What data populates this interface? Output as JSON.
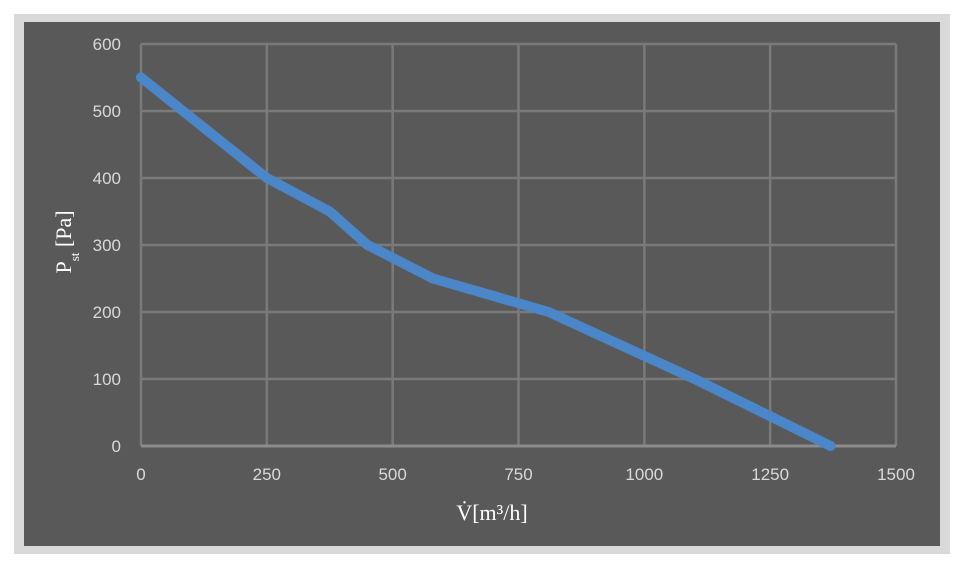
{
  "chart_data": {
    "type": "line",
    "title": "",
    "xlabel": "V̇[m³/h]",
    "ylabel_main": "P",
    "ylabel_sub": "st",
    "ylabel_unit": " [Pa]",
    "xlim": [
      0,
      1500
    ],
    "ylim": [
      0,
      600
    ],
    "x_ticks": [
      0,
      250,
      500,
      750,
      1000,
      1250,
      1500
    ],
    "y_ticks": [
      0,
      100,
      200,
      300,
      400,
      500,
      600
    ],
    "grid": true,
    "legend": "none",
    "series": [
      {
        "color": "#4a86c8",
        "x": [
          0,
          250,
          375,
          450,
          580,
          810,
          1100,
          1370
        ],
        "y": [
          550,
          400,
          350,
          300,
          250,
          200,
          100,
          0
        ]
      }
    ],
    "colors": {
      "plot_background": "#595959",
      "frame": "#d9d9d9",
      "gridline": "#7a7a7a",
      "tick_text": "#d9d9d9",
      "title_text": "#ffffff",
      "line": "#4a86c8"
    }
  }
}
